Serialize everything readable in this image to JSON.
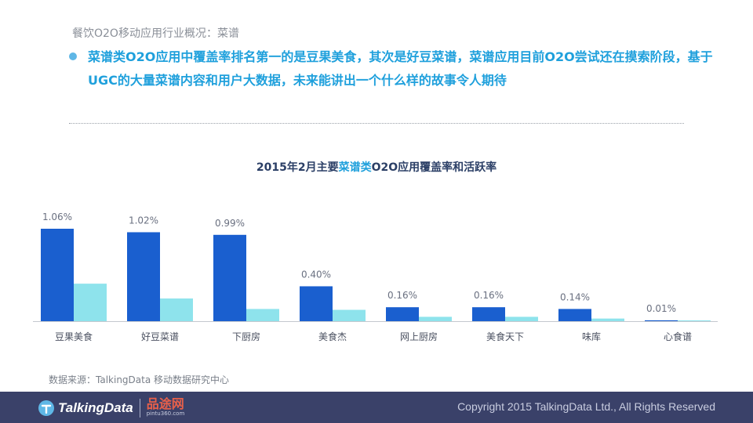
{
  "header": {
    "section_title": "餐饮O2O移动应用行业概况：菜谱",
    "headline": "菜谱类O2O应用中覆盖率排名第一的是豆果美食，其次是好豆菜谱，菜谱应用目前O2O尝试还在摸索阶段，基于UGC的大量菜谱内容和用户大数据，未来能讲出一个什么样的故事令人期待"
  },
  "chart_title": {
    "prefix": "2015年2月主要",
    "highlight": "菜谱类",
    "suffix": "O2O应用覆盖率和活跃率"
  },
  "chart_data": {
    "type": "bar",
    "title": "2015年2月主要菜谱类O2O应用覆盖率和活跃率",
    "categories": [
      "豆果美食",
      "好豆菜谱",
      "下厨房",
      "美食杰",
      "网上厨房",
      "美食天下",
      "味库",
      "心食谱"
    ],
    "series": [
      {
        "values": [
          1.06,
          1.02,
          0.99,
          0.4,
          0.16,
          0.16,
          0.14,
          0.01
        ],
        "labels": [
          "1.06%",
          "1.02%",
          "0.99%",
          "0.40%",
          "0.16%",
          "0.16%",
          "0.14%",
          "0.01%"
        ]
      },
      {
        "values": [
          0.43,
          0.26,
          0.14,
          0.13,
          0.05,
          0.05,
          0.03,
          0.0
        ]
      }
    ],
    "ylim": [
      0,
      1.06
    ],
    "grid": false
  },
  "source": "数据来源：TalkingData 移动数据研究中心",
  "footer": {
    "logo_text": "TalkingData",
    "partner_name": "品途网",
    "partner_url": "pintu360.com",
    "copyright": "Copyright 2015 TalkingData Ltd., All Rights Reserved"
  },
  "colors": {
    "coverage_bar": "#1a5fcf",
    "activity_bar": "#8ee3ec",
    "accent": "#1fa0dc",
    "footer_bg": "#3a4169"
  }
}
